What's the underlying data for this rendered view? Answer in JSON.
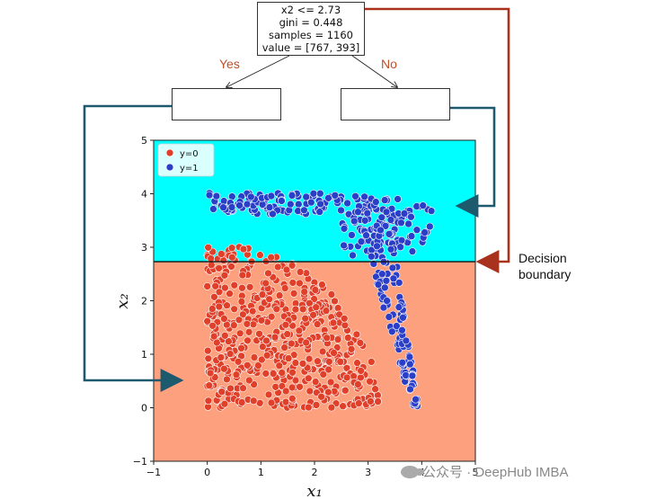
{
  "tree": {
    "root": {
      "lines": [
        "x2 <= 2.73",
        "gini = 0.448",
        "samples = 1160",
        "value = [767, 393]"
      ]
    },
    "yes_label": "Yes",
    "no_label": "No"
  },
  "annotation": {
    "decision_boundary": [
      "Decision",
      "boundary"
    ]
  },
  "watermark": "公众号 · DeepHub IMBA",
  "colors": {
    "region_above": "#00ffff",
    "region_below": "#fca07e",
    "class0": "#e0402a",
    "class1": "#2b3ec8",
    "arrow_yes": "#1e5a6e",
    "arrow_no": "#a8321e"
  },
  "chart_data": {
    "type": "scatter",
    "xlabel": "x₁",
    "ylabel": "x₂",
    "xlim": [
      -1,
      5
    ],
    "ylim": [
      -1,
      5
    ],
    "xticks": [
      -1,
      0,
      1,
      2,
      3,
      4,
      5
    ],
    "yticks": [
      -1,
      0,
      1,
      2,
      3,
      4,
      5
    ],
    "legend": {
      "placement": "top-left",
      "entries": [
        "y=0",
        "y=1"
      ]
    },
    "decision_boundary_y": 2.73,
    "series": [
      {
        "name": "y=0",
        "region": "quarter-disc, x in [0, 3.2], y in [0, 3.1], x1^2/3.2^2 + x2^2/3.1^2 <= 1",
        "count": 767
      },
      {
        "name": "y=1",
        "region": "band along top y in [3.6, 4.0] for x in [0, 4.2] plus vertical band x in [3.6, 4.0] for y in [0, 4.0]",
        "count": 393
      }
    ]
  }
}
